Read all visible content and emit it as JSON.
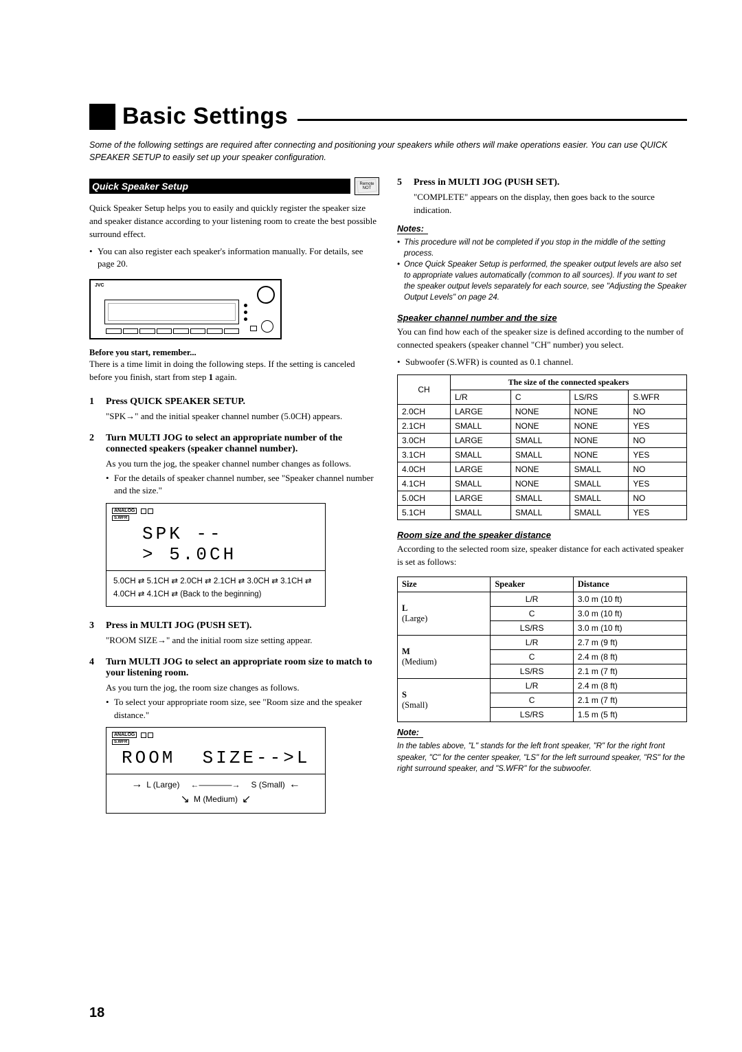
{
  "page_number": "18",
  "title": "Basic Settings",
  "intro": "Some of the following settings are required after connecting and positioning your speakers while others will make operations easier. You can use QUICK SPEAKER SETUP to easily set up your speaker configuration.",
  "left": {
    "section_title": "Quick Speaker Setup",
    "badge": "Remote NOT",
    "p1": "Quick Speaker Setup helps you to easily and quickly register the speaker size and speaker distance according to your listening room to create the best possible surround effect.",
    "b1": "You can also register each speaker's information manually. For details, see page 20.",
    "receiver_brand": "JVC",
    "before_h": "Before you start, remember...",
    "before_p": "There is a time limit in doing the following steps. If the setting is canceled before you finish, start from step 1 again.",
    "steps": [
      {
        "num": "1",
        "title": "Press QUICK SPEAKER SETUP.",
        "sub": "\"SPK→\" and the initial speaker channel number (5.0CH) appears."
      },
      {
        "num": "2",
        "title": "Turn MULTI JOG to select an appropriate number of the connected speakers (speaker channel number).",
        "sub": "As you turn the jog, the speaker channel number changes as follows.",
        "bullet": "For the details of speaker channel number, see \"Speaker channel number and the size.\""
      },
      {
        "num": "3",
        "title": "Press in MULTI JOG (PUSH SET).",
        "sub": "\"ROOM SIZE→\" and the initial room size setting appear."
      },
      {
        "num": "4",
        "title": "Turn MULTI JOG to select an appropriate room size to match to your listening room.",
        "sub": "As you turn the jog, the room size changes as follows.",
        "bullet": "To select your appropriate room size, see \"Room size and the speaker distance.\""
      }
    ],
    "display1": {
      "tag": "ANALOG",
      "tag2": "S.WFR",
      "lcd": "SPK→5.0CH",
      "seq": "5.0CH ⇄ 5.1CH ⇄ 2.0CH ⇄ 2.1CH ⇄ 3.0CH ⇄ 3.1CH ⇄ 4.0CH ⇄ 4.1CH ⇄ (Back to the beginning)"
    },
    "display2": {
      "tag": "ANALOG",
      "tag2": "S.WFR",
      "lcd": "ROOM SIZE→L",
      "opt_l": "L (Large)",
      "opt_s": "S (Small)",
      "opt_m": "M (Medium)"
    }
  },
  "right": {
    "step5": {
      "num": "5",
      "title": "Press in MULTI JOG (PUSH SET).",
      "sub": "\"COMPLETE\" appears on the display, then goes back to the source indication."
    },
    "notes_h": "Notes:",
    "notes": [
      "This procedure will not be completed if you stop in the middle of the setting process.",
      "Once Quick Speaker Setup is performed, the speaker output levels are also set to appropriate values automatically (common to all sources). If you want to set the speaker output levels separately for each source, see \"Adjusting the Speaker Output Levels\" on page 24."
    ],
    "sub1_h": "Speaker channel number and the size",
    "sub1_p": "You can find how each of the speaker size is defined according to the number of connected speakers (speaker channel \"CH\" number) you select.",
    "sub1_b": "Subwoofer (S.WFR) is counted as 0.1 channel.",
    "ch_table": {
      "header_group": "The size of the connected speakers",
      "corner": "CH",
      "cols": [
        "L/R",
        "C",
        "LS/RS",
        "S.WFR"
      ],
      "rows": [
        [
          "2.0CH",
          "LARGE",
          "NONE",
          "NONE",
          "NO"
        ],
        [
          "2.1CH",
          "SMALL",
          "NONE",
          "NONE",
          "YES"
        ],
        [
          "3.0CH",
          "LARGE",
          "SMALL",
          "NONE",
          "NO"
        ],
        [
          "3.1CH",
          "SMALL",
          "SMALL",
          "NONE",
          "YES"
        ],
        [
          "4.0CH",
          "LARGE",
          "NONE",
          "SMALL",
          "NO"
        ],
        [
          "4.1CH",
          "SMALL",
          "NONE",
          "SMALL",
          "YES"
        ],
        [
          "5.0CH",
          "LARGE",
          "SMALL",
          "SMALL",
          "NO"
        ],
        [
          "5.1CH",
          "SMALL",
          "SMALL",
          "SMALL",
          "YES"
        ]
      ]
    },
    "sub2_h": "Room size and the speaker distance",
    "sub2_p": "According to the selected room size, speaker distance for each activated speaker is set as follows:",
    "rs_table": {
      "cols": [
        "Size",
        "Speaker",
        "Distance"
      ],
      "groups": [
        {
          "size_code": "L",
          "size_name": "(Large)",
          "rows": [
            [
              "L/R",
              "3.0 m (10 ft)"
            ],
            [
              "C",
              "3.0 m (10 ft)"
            ],
            [
              "LS/RS",
              "3.0 m (10 ft)"
            ]
          ]
        },
        {
          "size_code": "M",
          "size_name": "(Medium)",
          "rows": [
            [
              "L/R",
              "2.7 m (9 ft)"
            ],
            [
              "C",
              "2.4 m (8 ft)"
            ],
            [
              "LS/RS",
              "2.1 m (7 ft)"
            ]
          ]
        },
        {
          "size_code": "S",
          "size_name": "(Small)",
          "rows": [
            [
              "L/R",
              "2.4 m (8 ft)"
            ],
            [
              "C",
              "2.1 m (7 ft)"
            ],
            [
              "LS/RS",
              "1.5 m (5 ft)"
            ]
          ]
        }
      ]
    },
    "note2_h": "Note:",
    "note2": "In the tables above, \"L\" stands for the left front speaker, \"R\" for the right front speaker, \"C\" for the center speaker, \"LS\" for the left surround speaker, \"RS\" for the right surround speaker, and \"S.WFR\" for the subwoofer."
  }
}
